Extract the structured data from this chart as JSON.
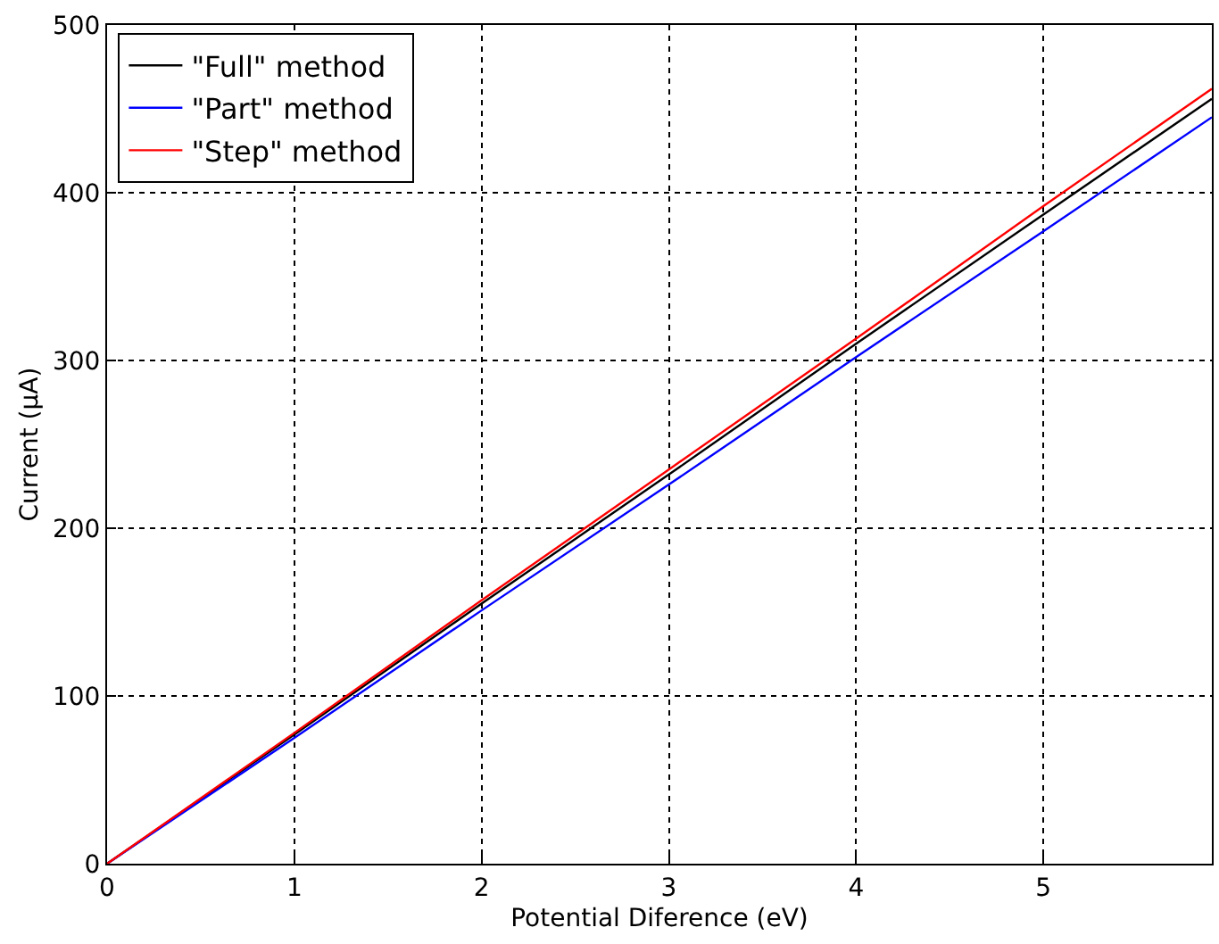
{
  "chart_data": {
    "type": "line",
    "xlabel": "Potential Diference (eV)",
    "ylabel": "Current (μA)",
    "xlim": [
      0,
      5.9
    ],
    "xticks": [
      0,
      1,
      2,
      3,
      4,
      5
    ],
    "ylim": [
      0,
      500
    ],
    "yticks": [
      0,
      100,
      200,
      300,
      400,
      500
    ],
    "grid": true,
    "legend": "top left",
    "marker": "none",
    "line_style": "solid",
    "series": [
      {
        "name": "\"Full\" method",
        "color": "#000000",
        "x": [
          0,
          1,
          2,
          3,
          4,
          5,
          5.9
        ],
        "values": [
          0,
          77,
          155,
          232,
          310,
          387,
          456
        ]
      },
      {
        "name": "\"Part\" method",
        "color": "#0000ff",
        "x": [
          0,
          1,
          2,
          3,
          4,
          5,
          5.9
        ],
        "values": [
          0,
          75,
          151,
          226,
          302,
          377,
          445
        ]
      },
      {
        "name": "\"Step\" method",
        "color": "#ff0000",
        "x": [
          0,
          1,
          2,
          3,
          4,
          5,
          5.9
        ],
        "values": [
          0,
          78,
          157,
          235,
          313,
          392,
          462
        ]
      }
    ]
  }
}
